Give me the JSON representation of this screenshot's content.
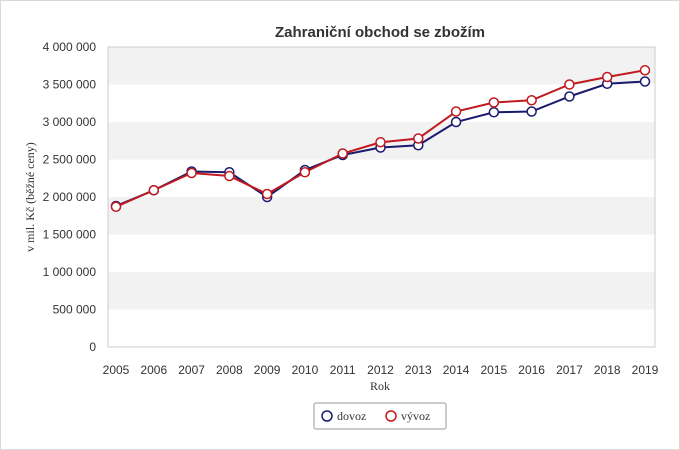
{
  "chart_data": {
    "type": "line",
    "title": "Zahraniční obchod se zbožím",
    "xlabel": "Rok",
    "ylabel": "v mil. Kč (běžné ceny)",
    "categories": [
      "2005",
      "2006",
      "2007",
      "2008",
      "2009",
      "2010",
      "2011",
      "2012",
      "2013",
      "2014",
      "2015",
      "2016",
      "2017",
      "2018",
      "2019"
    ],
    "ylim": [
      0,
      4000000
    ],
    "yticks": [
      0,
      500000,
      1000000,
      1500000,
      2000000,
      2500000,
      3000000,
      3500000,
      4000000
    ],
    "ytick_labels": [
      "0",
      "500 000",
      "1 000 000",
      "1 500 000",
      "2 000 000",
      "2 500 000",
      "3 000 000",
      "3 500 000",
      "4 000 000"
    ],
    "grid": "alternating horizontal bands",
    "legend_position": "bottom-center",
    "series": [
      {
        "name": "dovoz",
        "color": "#1a1a6e",
        "values": [
          1880000,
          2090000,
          2340000,
          2330000,
          2000000,
          2360000,
          2560000,
          2660000,
          2690000,
          3000000,
          3130000,
          3140000,
          3340000,
          3510000,
          3540000
        ]
      },
      {
        "name": "vývoz",
        "color": "#c0191e",
        "values": [
          1870000,
          2090000,
          2320000,
          2280000,
          2040000,
          2330000,
          2580000,
          2730000,
          2780000,
          3140000,
          3260000,
          3290000,
          3500000,
          3600000,
          3690000
        ]
      }
    ]
  }
}
